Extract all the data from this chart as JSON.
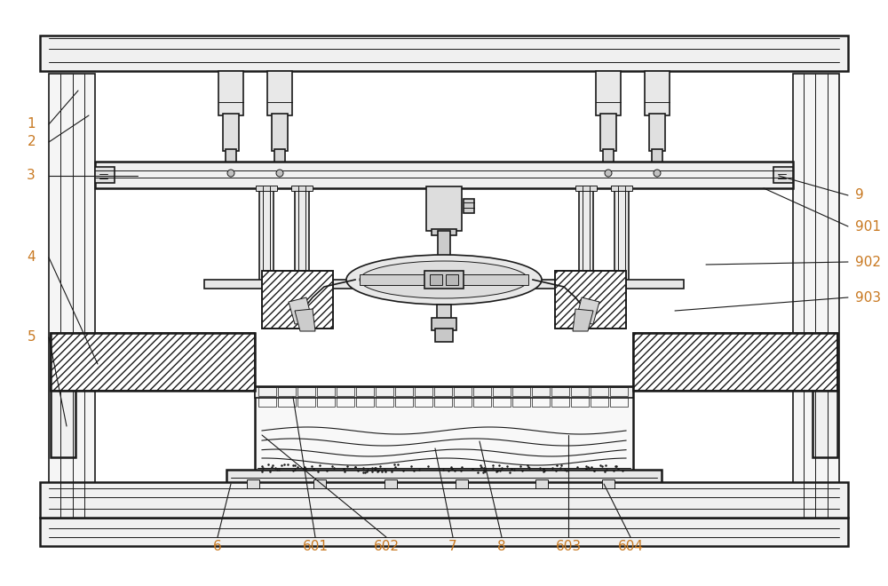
{
  "bg_color": "#ffffff",
  "line_color": "#1a1a1a",
  "label_color": "#c87820",
  "fig_width": 10.0,
  "fig_height": 6.6,
  "label_fontsize": 11
}
